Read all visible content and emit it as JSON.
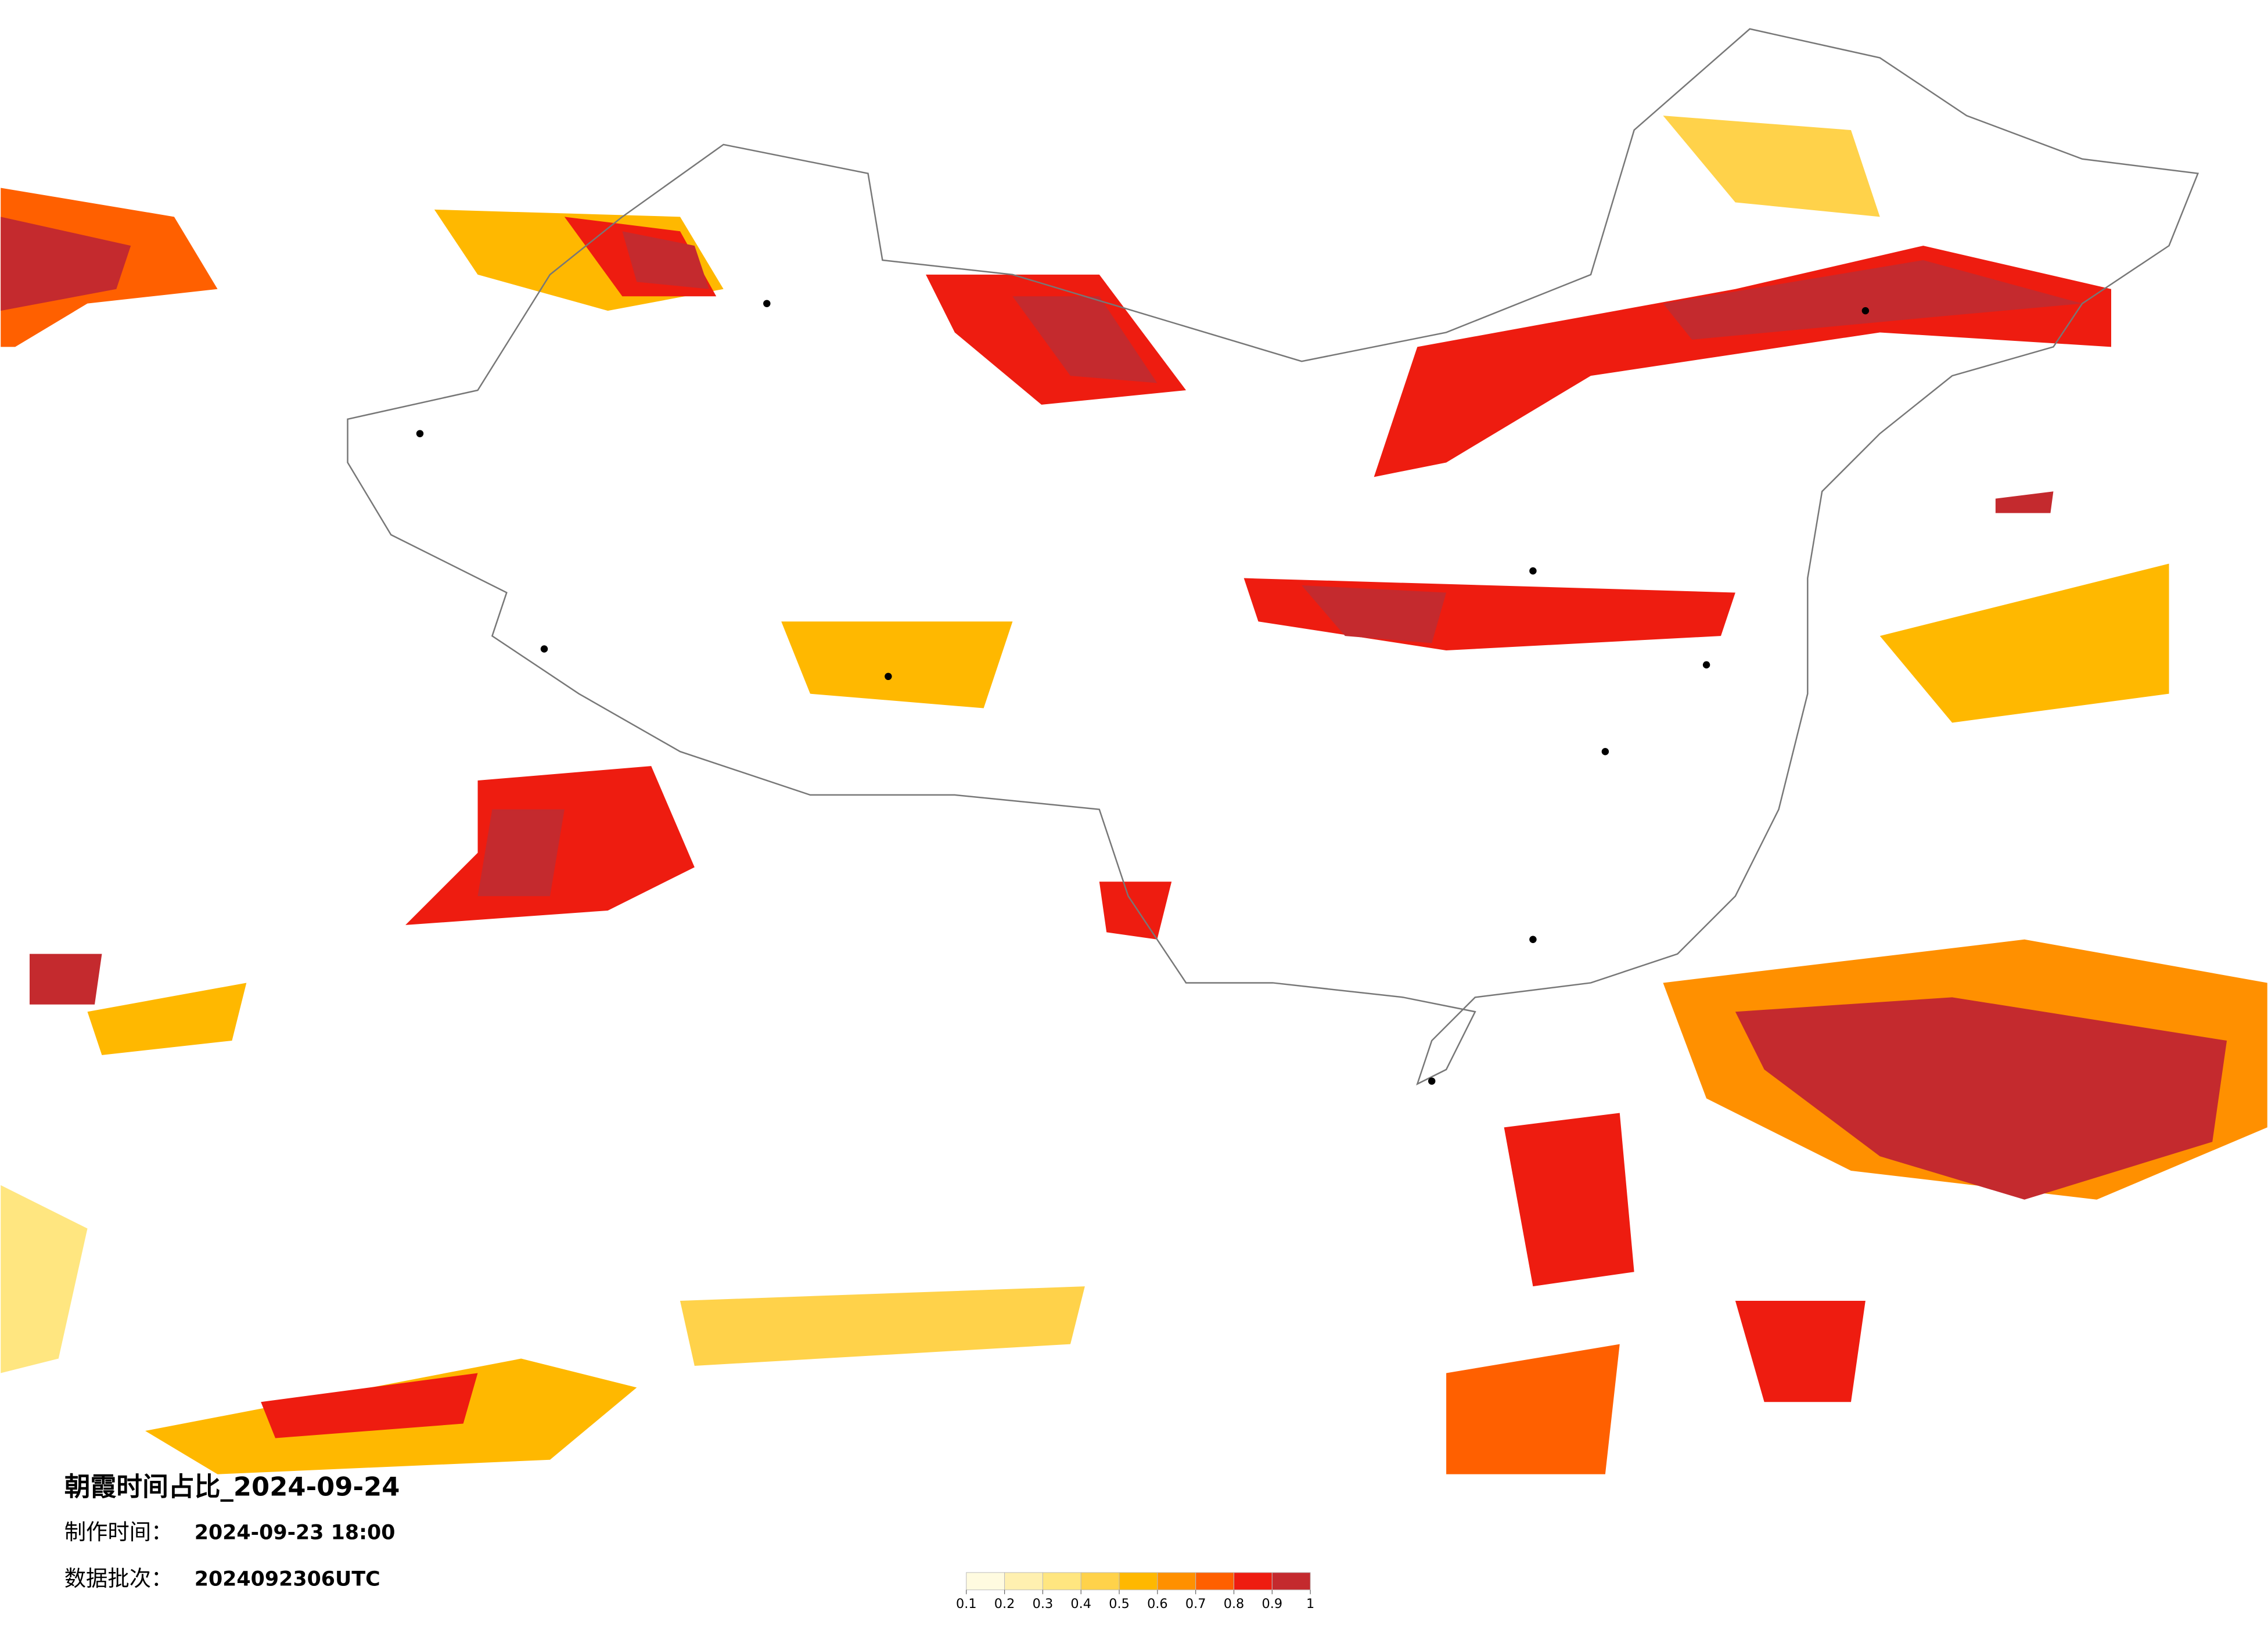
{
  "header": {
    "title": "朝霞时间占比_2024-09-24",
    "made_label": "制作时间：",
    "made_time": "2024-09-23 18:00",
    "batch_label": "数据批次：",
    "batch": "2024092306UTC"
  },
  "legend": {
    "ticks": [
      0.1,
      0.2,
      0.3,
      0.4,
      0.5,
      0.6,
      0.7,
      0.8,
      0.9,
      1
    ],
    "colors": [
      "#fffbe0",
      "#fff0b0",
      "#ffe680",
      "#ffd24a",
      "#ffb800",
      "#ff9000",
      "#ff6000",
      "#ee1c10",
      "#c42a2e"
    ]
  }
}
